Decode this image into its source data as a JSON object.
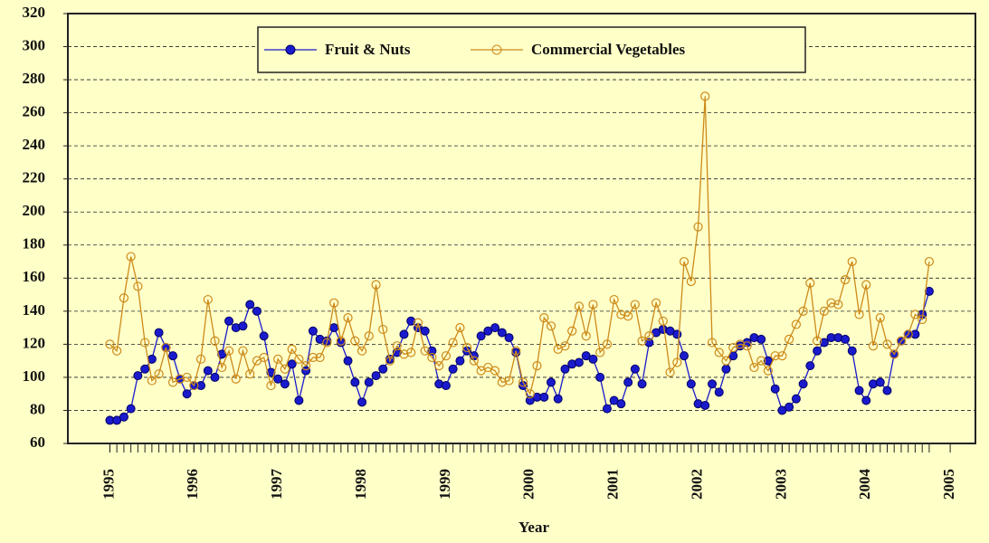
{
  "chart_data": {
    "type": "line",
    "x_label": "Year",
    "x": [
      1995,
      1995.083,
      1995.167,
      1995.25,
      1995.333,
      1995.417,
      1995.5,
      1995.583,
      1995.667,
      1995.75,
      1995.833,
      1995.917,
      1996,
      1996.083,
      1996.167,
      1996.25,
      1996.333,
      1996.417,
      1996.5,
      1996.583,
      1996.667,
      1996.75,
      1996.833,
      1996.917,
      1997,
      1997.083,
      1997.167,
      1997.25,
      1997.333,
      1997.417,
      1997.5,
      1997.583,
      1997.667,
      1997.75,
      1997.833,
      1997.917,
      1998,
      1998.083,
      1998.167,
      1998.25,
      1998.333,
      1998.417,
      1998.5,
      1998.583,
      1998.667,
      1998.75,
      1998.833,
      1998.917,
      1999,
      1999.083,
      1999.167,
      1999.25,
      1999.333,
      1999.417,
      1999.5,
      1999.583,
      1999.667,
      1999.75,
      1999.833,
      1999.917,
      2000,
      2000.083,
      2000.167,
      2000.25,
      2000.333,
      2000.417,
      2000.5,
      2000.583,
      2000.667,
      2000.75,
      2000.833,
      2000.917,
      2001,
      2001.083,
      2001.167,
      2001.25,
      2001.333,
      2001.417,
      2001.5,
      2001.583,
      2001.667,
      2001.75,
      2001.833,
      2001.917,
      2002,
      2002.083,
      2002.167,
      2002.25,
      2002.333,
      2002.417,
      2002.5,
      2002.583,
      2002.667,
      2002.75,
      2002.833,
      2002.917,
      2003,
      2003.083,
      2003.167,
      2003.25,
      2003.333,
      2003.417,
      2003.5,
      2003.583,
      2003.667,
      2003.75,
      2003.833,
      2003.917,
      2004,
      2004.083,
      2004.167,
      2004.25,
      2004.333,
      2004.417,
      2004.5,
      2004.583,
      2004.667,
      2004.75
    ],
    "series": [
      {
        "name": "Fruit & Nuts",
        "color": "#1a1acc",
        "values": [
          74,
          74,
          76,
          81,
          101,
          105,
          111,
          127,
          118,
          113,
          99,
          90,
          95,
          95,
          104,
          100,
          114,
          134,
          130,
          131,
          144,
          140,
          125,
          103,
          99,
          96,
          108,
          86,
          104,
          128,
          123,
          122,
          130,
          121,
          110,
          97,
          85,
          97,
          101,
          105,
          111,
          115,
          126,
          134,
          130,
          128,
          116,
          96,
          95,
          105,
          110,
          116,
          113,
          125,
          128,
          130,
          127,
          124,
          115,
          95,
          86,
          88,
          88,
          97,
          87,
          105,
          108,
          109,
          113,
          111,
          100,
          81,
          86,
          84,
          97,
          105,
          96,
          121,
          127,
          129,
          128,
          126,
          113,
          96,
          84,
          83,
          96,
          91,
          105,
          113,
          119,
          121,
          124,
          123,
          110,
          93,
          80,
          82,
          87,
          96,
          107,
          116,
          121,
          124,
          124,
          123,
          116,
          92,
          86,
          96,
          97,
          92,
          114,
          122,
          126,
          126,
          138,
          152
        ]
      },
      {
        "name": "Commercial Vegetables",
        "color": "#cc8a1a",
        "values": [
          120,
          116,
          148,
          173,
          155,
          121,
          98,
          102,
          118,
          97,
          99,
          100,
          95,
          111,
          147,
          122,
          106,
          116,
          99,
          116,
          102,
          110,
          112,
          95,
          111,
          105,
          117,
          111,
          107,
          112,
          112,
          121,
          145,
          122,
          136,
          122,
          116,
          125,
          156,
          129,
          110,
          119,
          114,
          115,
          133,
          116,
          112,
          107,
          113,
          121,
          130,
          118,
          110,
          104,
          106,
          104,
          97,
          98,
          116,
          97,
          90,
          107,
          136,
          131,
          117,
          119,
          128,
          143,
          125,
          144,
          115,
          120,
          147,
          138,
          137,
          144,
          122,
          125,
          145,
          134,
          103,
          109,
          170,
          158,
          191,
          270,
          121,
          115,
          110,
          118,
          120,
          119,
          106,
          110,
          104,
          113,
          113,
          123,
          132,
          140,
          157,
          122,
          140,
          145,
          144,
          159,
          170,
          138,
          156,
          119,
          136,
          120,
          114,
          122,
          126,
          138,
          135,
          170
        ]
      }
    ],
    "xlim": [
      1994.5,
      2005.3
    ],
    "xticks": [
      1995,
      1996,
      1997,
      1998,
      1999,
      2000,
      2001,
      2002,
      2003,
      2004,
      2005
    ],
    "ylim": [
      60,
      320
    ],
    "yticks": [
      60,
      80,
      100,
      120,
      140,
      160,
      180,
      200,
      220,
      240,
      260,
      280,
      300,
      320
    ],
    "grid": true,
    "legend": "top"
  }
}
